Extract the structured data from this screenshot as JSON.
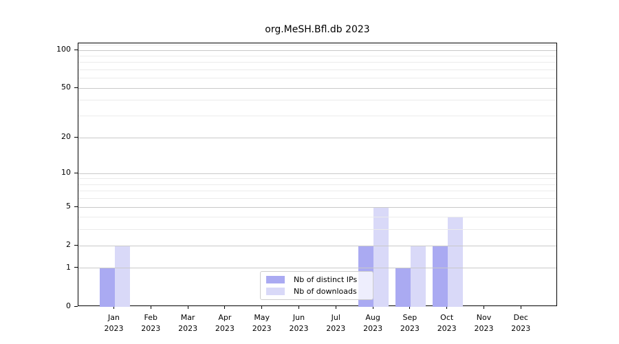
{
  "chart_data": {
    "type": "bar",
    "title": "org.MeSH.Bfl.db 2023",
    "year_label": "2023",
    "categories": [
      "Jan",
      "Feb",
      "Mar",
      "Apr",
      "May",
      "Jun",
      "Jul",
      "Aug",
      "Sep",
      "Oct",
      "Nov",
      "Dec"
    ],
    "series": [
      {
        "name": "Nb of distinct IPs",
        "color": "#aaaaf2",
        "values": [
          1,
          0,
          0,
          0,
          0,
          0,
          0,
          2,
          1,
          2,
          0,
          0
        ]
      },
      {
        "name": "Nb of downloads",
        "color": "#d9d9f8",
        "values": [
          2,
          0,
          0,
          0,
          0,
          0,
          0,
          5,
          2,
          4,
          0,
          0
        ]
      }
    ],
    "y_scale": "log1p",
    "ylim": [
      0,
      113.5
    ],
    "y_major_ticks": [
      0,
      1,
      2,
      5,
      10,
      20,
      50,
      100
    ],
    "y_minor_gridlines": [
      3,
      4,
      6,
      7,
      8,
      9,
      30,
      40,
      60,
      70,
      80,
      90,
      110
    ],
    "grid": "on",
    "legend_position": "lower-center",
    "colors": {
      "background": "#ffffff",
      "axis": "#000000",
      "major_grid": "#c9c9c9",
      "minor_grid": "#ebebeb",
      "legend_border": "#cccccc",
      "text": "#000000"
    }
  }
}
